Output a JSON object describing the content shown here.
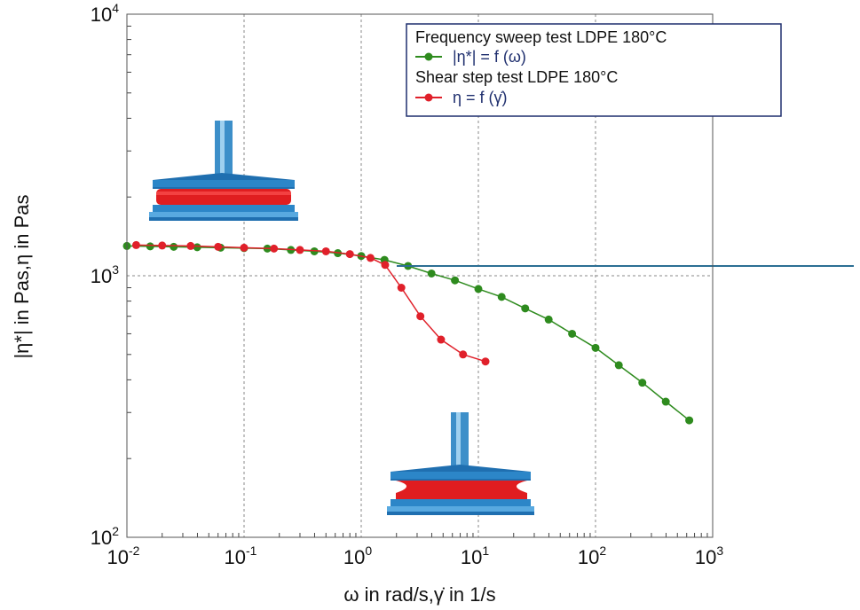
{
  "chart_data": {
    "type": "line",
    "scale": {
      "x": "log",
      "y": "log"
    },
    "xlim": [
      0.01,
      1000
    ],
    "ylim": [
      100,
      10000
    ],
    "grid": true,
    "legend_position": "top-right",
    "xlabel": "ω in rad/s,γ̇ in 1/s",
    "ylabel": "|η*| in Pas,η in Pas",
    "x_ticks": [
      {
        "base": "10",
        "exp": "-2",
        "value": 0.01
      },
      {
        "base": "10",
        "exp": "-1",
        "value": 0.1
      },
      {
        "base": "10",
        "exp": "0",
        "value": 1
      },
      {
        "base": "10",
        "exp": "1",
        "value": 10
      },
      {
        "base": "10",
        "exp": "2",
        "value": 100
      },
      {
        "base": "10",
        "exp": "3",
        "value": 1000
      }
    ],
    "y_ticks": [
      {
        "base": "10",
        "exp": "2",
        "value": 100
      },
      {
        "base": "10",
        "exp": "3",
        "value": 1000
      },
      {
        "base": "10",
        "exp": "4",
        "value": 10000
      }
    ],
    "legend": {
      "headings": [
        "Frequency sweep test LDPE 180°C",
        "Shear step test LDPE 180°C"
      ]
    },
    "series": [
      {
        "name": "|η*| = f (ω)",
        "heading": "Frequency sweep test LDPE 180°C",
        "color": "#2e8b1e",
        "x": [
          0.01,
          0.0158,
          0.0251,
          0.0398,
          0.0631,
          0.1,
          0.158,
          0.251,
          0.398,
          0.631,
          1.0,
          1.58,
          2.51,
          3.98,
          6.31,
          10.0,
          15.8,
          25.1,
          39.8,
          63.1,
          100,
          158,
          251,
          398,
          631
        ],
        "y": [
          1300,
          1295,
          1290,
          1285,
          1280,
          1275,
          1270,
          1255,
          1240,
          1220,
          1190,
          1150,
          1090,
          1020,
          960,
          890,
          830,
          750,
          680,
          600,
          530,
          455,
          390,
          330,
          280
        ]
      },
      {
        "name": "η = f (γ̇)",
        "heading": "Shear step test LDPE 180°C",
        "color": "#e0202a",
        "x": [
          0.012,
          0.02,
          0.035,
          0.06,
          0.1,
          0.18,
          0.3,
          0.5,
          0.8,
          1.2,
          1.6,
          2.2,
          3.2,
          4.8,
          7.4,
          11.5
        ],
        "y": [
          1310,
          1305,
          1300,
          1290,
          1280,
          1270,
          1255,
          1240,
          1210,
          1170,
          1100,
          900,
          700,
          570,
          500,
          470
        ]
      }
    ]
  }
}
